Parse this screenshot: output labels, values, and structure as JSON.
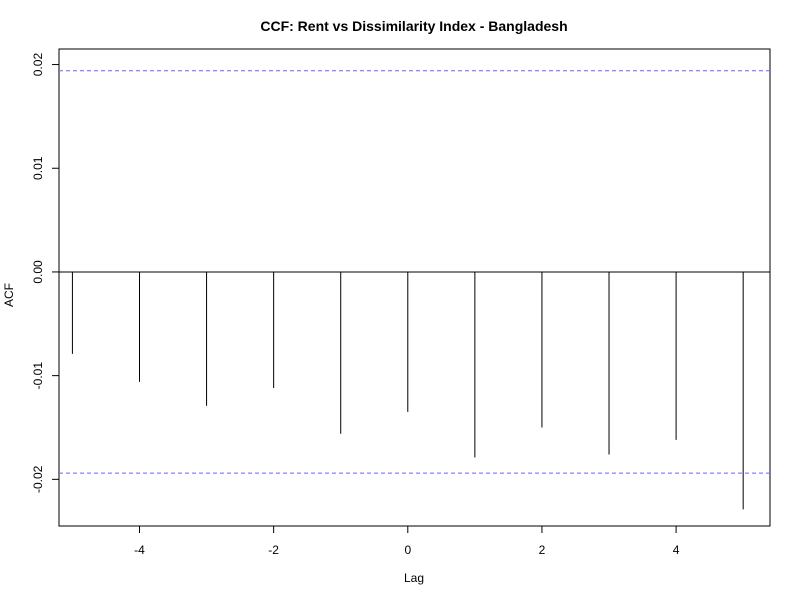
{
  "chart_data": {
    "type": "bar",
    "title": "CCF: Rent vs Dissimilarity Index - Bangladesh",
    "xlabel": "Lag",
    "ylabel": "ACF",
    "x": [
      -5,
      -4,
      -3,
      -2,
      -1,
      0,
      1,
      2,
      3,
      4,
      5
    ],
    "values": [
      -0.0079,
      -0.0106,
      -0.0129,
      -0.0112,
      -0.0156,
      -0.0135,
      -0.0179,
      -0.015,
      -0.0176,
      -0.0162,
      -0.0229
    ],
    "xlim": [
      -5.2,
      5.4
    ],
    "ylim": [
      -0.0245,
      0.0215
    ],
    "x_ticks": [
      -4,
      -2,
      0,
      2,
      4
    ],
    "x_tick_labels": [
      "-4",
      "-2",
      "0",
      "2",
      "4"
    ],
    "y_ticks": [
      -0.02,
      -0.01,
      0.0,
      0.01,
      0.02
    ],
    "y_tick_labels": [
      "-0.02",
      "-0.01",
      "0.00",
      "0.01",
      "0.02"
    ],
    "confidence_bound": 0.0194,
    "zero_line": true,
    "grid": false,
    "colors": {
      "bars": "#000000",
      "confidence_lines": "#6666ff",
      "frame": "#000000",
      "background": "#ffffff"
    }
  }
}
